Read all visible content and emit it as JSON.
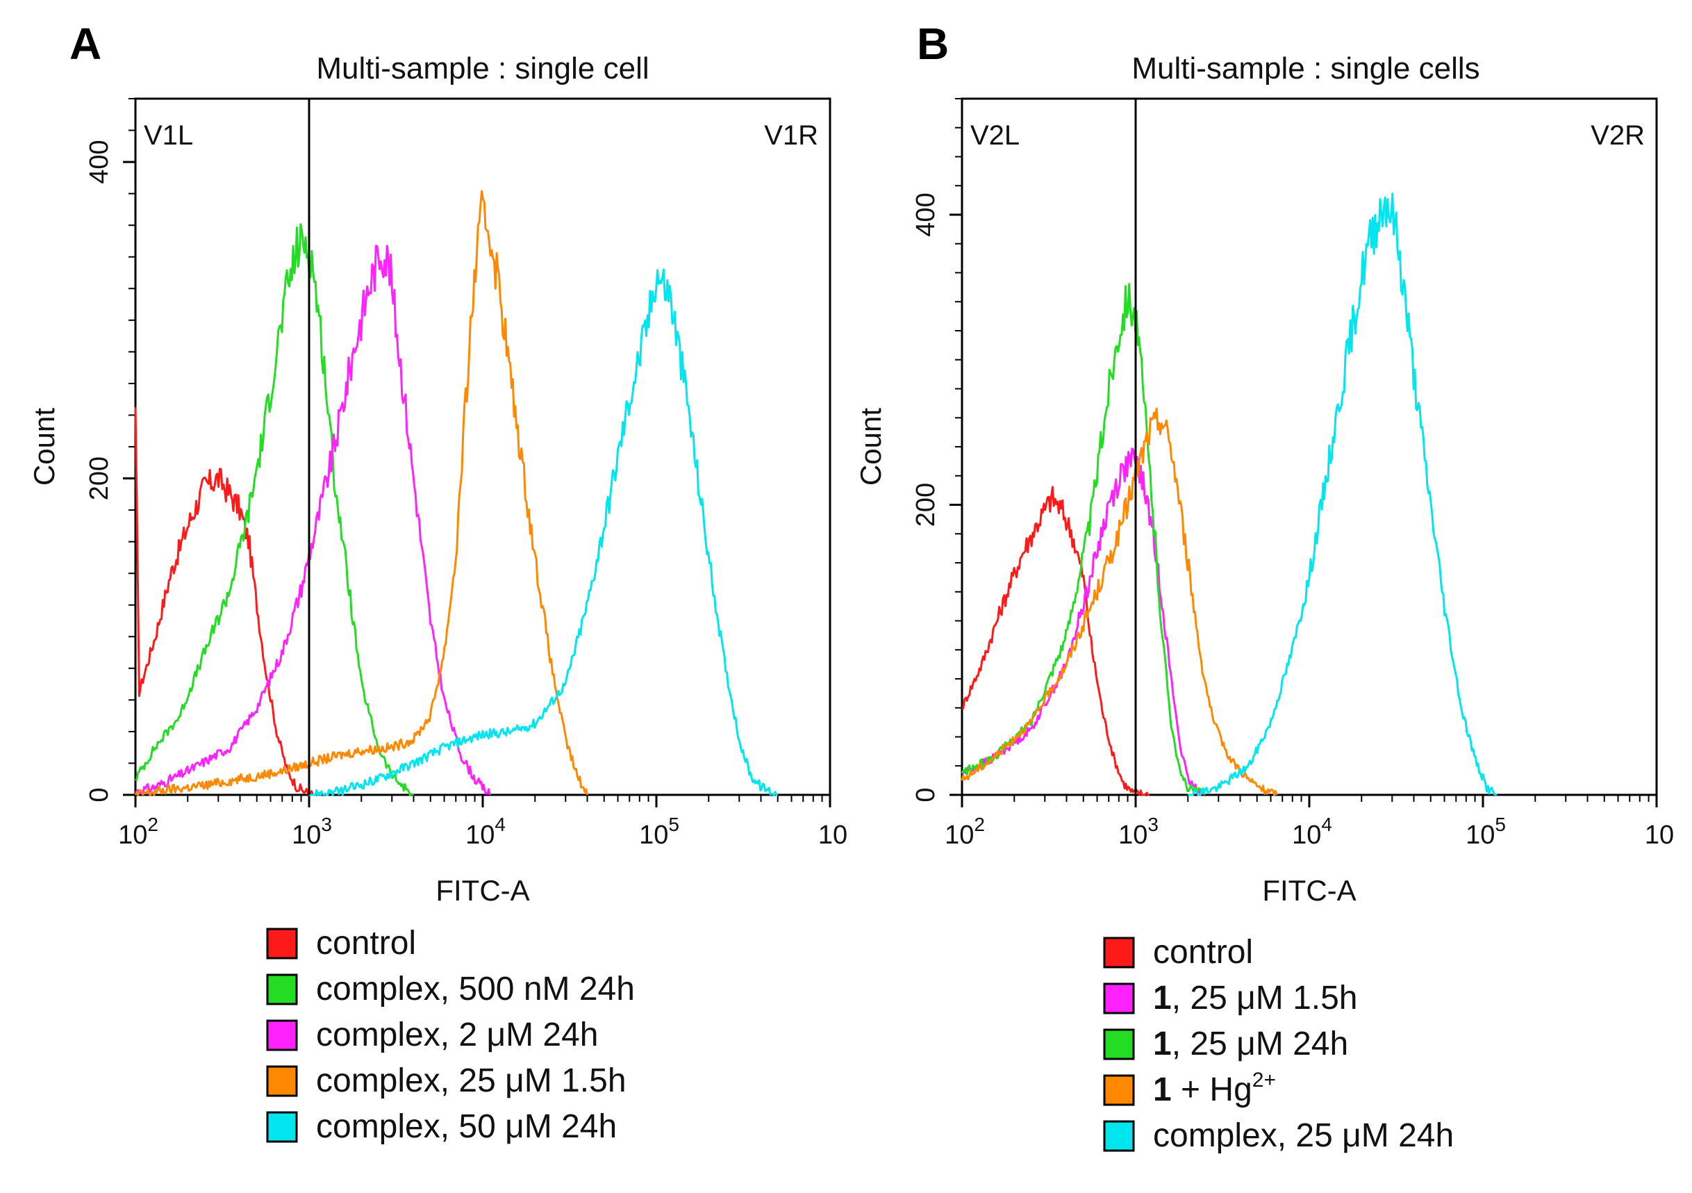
{
  "chart_data": [
    {
      "type": "line",
      "panel_label": "A",
      "title": "Multi-sample : single cell",
      "xlabel": "FITC-A",
      "ylabel": "Count",
      "x_scale": "log",
      "xlim": [
        100,
        1000000
      ],
      "ylim": [
        0,
        440
      ],
      "x_ticks": [
        {
          "base": "10",
          "exp": "2"
        },
        {
          "base": "10",
          "exp": "3"
        },
        {
          "base": "10",
          "exp": "4"
        },
        {
          "base": "10",
          "exp": "5"
        },
        {
          "base": "10",
          "exp": ""
        }
      ],
      "y_ticks": [
        0,
        200,
        400
      ],
      "gate_x": 1000,
      "gate_left_label": "V1L",
      "gate_right_label": "V1R",
      "series": [
        {
          "name": "control",
          "color": "#ff1a1a",
          "x": [
            100,
            105,
            130,
            160,
            200,
            250,
            300,
            350,
            400,
            450,
            500,
            560,
            650,
            750,
            850,
            950,
            1050
          ],
          "y": [
            245,
            65,
            100,
            140,
            170,
            195,
            200,
            190,
            180,
            160,
            120,
            80,
            40,
            15,
            5,
            2,
            0
          ]
        },
        {
          "name": "complex, 500 nM 24h",
          "color": "#22dd22",
          "x": [
            100,
            130,
            180,
            250,
            350,
            450,
            550,
            650,
            750,
            850,
            950,
            1050,
            1200,
            1400,
            1700,
            2000,
            2500,
            3000,
            3500,
            4000
          ],
          "y": [
            10,
            30,
            50,
            90,
            130,
            180,
            230,
            280,
            320,
            345,
            350,
            335,
            280,
            200,
            130,
            70,
            30,
            12,
            5,
            0
          ]
        },
        {
          "name": "complex, 2 μM 24h",
          "color": "#ff22ff",
          "x": [
            100,
            130,
            200,
            350,
            500,
            700,
            900,
            1100,
            1400,
            1800,
            2200,
            2600,
            2900,
            3300,
            4000,
            5000,
            6000,
            7500,
            9000,
            11000
          ],
          "y": [
            2,
            5,
            15,
            30,
            55,
            90,
            130,
            170,
            220,
            280,
            320,
            345,
            335,
            280,
            200,
            110,
            60,
            25,
            10,
            0
          ]
        },
        {
          "name": "complex, 25 μM 1.5h",
          "color": "#ff8800",
          "x": [
            100,
            150,
            250,
            400,
            700,
            1000,
            1500,
            2000,
            3000,
            4000,
            5000,
            6000,
            7000,
            8000,
            9000,
            10000,
            11000,
            12500,
            15000,
            20000,
            25000,
            30000,
            35000,
            40000
          ],
          "y": [
            0,
            3,
            6,
            10,
            15,
            20,
            25,
            28,
            30,
            35,
            50,
            90,
            150,
            250,
            330,
            370,
            355,
            320,
            250,
            150,
            80,
            35,
            12,
            0
          ]
        },
        {
          "name": "complex, 50 μM 24h",
          "color": "#00e5ee",
          "x": [
            1000,
            1500,
            2500,
            4000,
            6000,
            8000,
            10000,
            15000,
            20000,
            30000,
            40000,
            50000,
            70000,
            90000,
            100000,
            120000,
            150000,
            200000,
            250000,
            300000,
            350000,
            400000,
            500000
          ],
          "y": [
            0,
            2,
            10,
            20,
            30,
            35,
            38,
            40,
            45,
            70,
            120,
            170,
            250,
            300,
            330,
            315,
            250,
            150,
            80,
            35,
            12,
            5,
            0
          ]
        }
      ]
    },
    {
      "type": "line",
      "panel_label": "B",
      "title": "Multi-sample : single cells",
      "xlabel": "FITC-A",
      "ylabel": "Count",
      "x_scale": "log",
      "xlim": [
        100,
        1000000
      ],
      "ylim": [
        0,
        480
      ],
      "x_ticks": [
        {
          "base": "10",
          "exp": "2"
        },
        {
          "base": "10",
          "exp": "3"
        },
        {
          "base": "10",
          "exp": "4"
        },
        {
          "base": "10",
          "exp": "5"
        },
        {
          "base": "10",
          "exp": ""
        }
      ],
      "y_ticks": [
        0,
        200,
        400
      ],
      "gate_x": 1000,
      "gate_left_label": "V2L",
      "gate_right_label": "V2R",
      "series": [
        {
          "name": "control",
          "color": "#ff1a1a",
          "x": [
            100,
            130,
            170,
            220,
            280,
            330,
            380,
            430,
            500,
            560,
            650,
            750,
            850,
            950,
            1050,
            1200
          ],
          "y": [
            60,
            90,
            130,
            165,
            190,
            205,
            195,
            180,
            150,
            100,
            55,
            25,
            8,
            2,
            1,
            0
          ]
        },
        {
          "name": "1, 25 μM 1.5h",
          "color": "#ff22ff",
          "x": [
            100,
            150,
            250,
            400,
            550,
            700,
            850,
            950,
            1050,
            1200,
            1400,
            1600,
            1800,
            2000,
            2400
          ],
          "y": [
            15,
            25,
            45,
            90,
            150,
            200,
            225,
            230,
            225,
            195,
            140,
            80,
            35,
            10,
            0
          ]
        },
        {
          "name": "1, 25 μM 24h",
          "color": "#22dd22",
          "x": [
            100,
            150,
            250,
            400,
            550,
            700,
            800,
            900,
            1000,
            1100,
            1250,
            1400,
            1600,
            1800,
            2000,
            2500
          ],
          "y": [
            15,
            25,
            50,
            110,
            190,
            280,
            320,
            345,
            330,
            280,
            200,
            120,
            50,
            15,
            5,
            0
          ]
        },
        {
          "name": "1 + Hg²⁺",
          "color": "#ff8800",
          "x": [
            100,
            150,
            250,
            400,
            600,
            800,
            1000,
            1200,
            1400,
            1600,
            1800,
            2000,
            2400,
            2800,
            3500,
            4500,
            5500,
            6500
          ],
          "y": [
            10,
            25,
            50,
            90,
            140,
            180,
            220,
            250,
            260,
            240,
            200,
            160,
            90,
            50,
            25,
            10,
            3,
            0
          ]
        },
        {
          "name": "complex, 25 μM 24h",
          "color": "#00e5ee",
          "x": [
            2000,
            3000,
            4500,
            6000,
            8000,
            10000,
            13000,
            17000,
            21000,
            25000,
            28000,
            31000,
            35000,
            40000,
            50000,
            60000,
            75000,
            90000,
            105000,
            120000
          ],
          "y": [
            0,
            5,
            20,
            50,
            100,
            150,
            230,
            310,
            370,
            400,
            410,
            395,
            350,
            290,
            200,
            130,
            60,
            25,
            5,
            0
          ]
        }
      ]
    }
  ],
  "legend_a": [
    {
      "color": "#ff1a1a",
      "label": "control"
    },
    {
      "color": "#22dd22",
      "label": "complex, 500 nM 24h"
    },
    {
      "color": "#ff22ff",
      "label": "complex, 2 μM 24h"
    },
    {
      "color": "#ff8800",
      "label": "complex, 25 μM 1.5h"
    },
    {
      "color": "#00e5ee",
      "label": "complex, 50 μM 24h"
    }
  ],
  "legend_b": [
    {
      "color": "#ff1a1a",
      "bold": "",
      "label": "control",
      "sup": ""
    },
    {
      "color": "#ff22ff",
      "bold": "1",
      "label": ", 25 μM 1.5h",
      "sup": ""
    },
    {
      "color": "#22dd22",
      "bold": "1",
      "label": ", 25 μM 24h",
      "sup": ""
    },
    {
      "color": "#ff8800",
      "bold": "1",
      "label": " + Hg",
      "sup": "2+"
    },
    {
      "color": "#00e5ee",
      "bold": "",
      "label": "complex, 25 μM 24h",
      "sup": ""
    }
  ]
}
